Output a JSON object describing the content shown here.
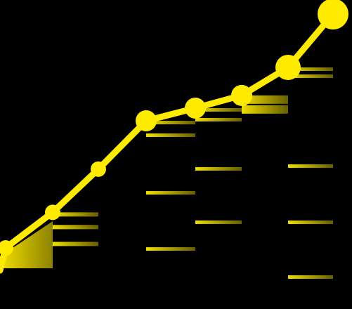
{
  "colors": {
    "background": "#000000",
    "accent": "#FFEB00",
    "dim": "#6E6A2E"
  },
  "graphic": {
    "type": "rising-line-with-dashed-drops",
    "point_count": 8,
    "point_levels": [
      0.08,
      0.22,
      0.39,
      0.58,
      0.63,
      0.68,
      0.79,
      1.0
    ],
    "point_sizes": [
      "small",
      "small",
      "small",
      "medium",
      "medium",
      "medium",
      "large",
      "xlarge"
    ]
  }
}
